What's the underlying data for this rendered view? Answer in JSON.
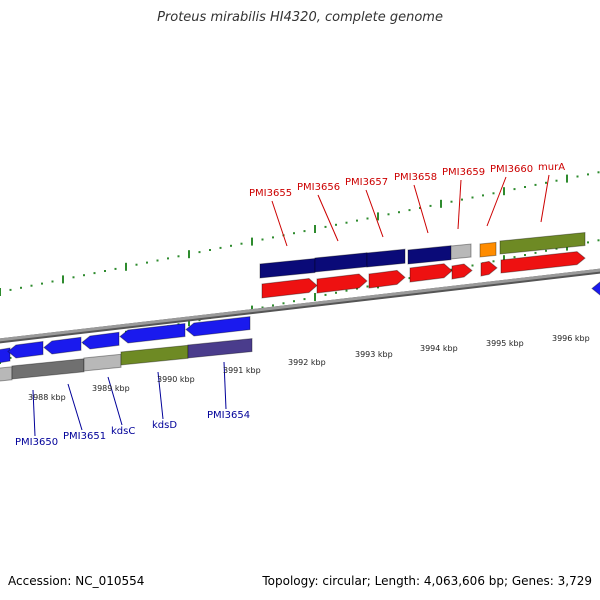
{
  "title": "Proteus mirabilis HI4320, complete genome",
  "footer": {
    "accession_label": "Accession: NC_010554",
    "summary_label": "Topology: circular; Length: 4,063,606 bp; Genes: 3,729"
  },
  "scale_labels": [
    "3988 kbp",
    "3989 kbp",
    "3990 kbp",
    "3991 kbp",
    "3992 kbp",
    "3993 kbp",
    "3994 kbp",
    "3995 kbp",
    "3996 kbp"
  ],
  "top_gene_labels": [
    "PMI3655",
    "PMI3656",
    "PMI3657",
    "PMI3658",
    "PMI3659",
    "PMI3660",
    "murA"
  ],
  "bottom_gene_labels": [
    "PMI3650",
    "PMI3651",
    "kdsC",
    "kdsD",
    "PMI3654"
  ],
  "colors": {
    "top_label": "#cc0000",
    "bottom_label": "#000099",
    "navy": "#0a0a78",
    "blue": "#1a1aee",
    "red": "#ee1111",
    "olive": "#6e8a24",
    "purple": "#4a3c8c",
    "gray": "#b8b8b8",
    "dark_gray": "#707070",
    "orange": "#ff8c00",
    "tick": "#2e8b2e"
  }
}
